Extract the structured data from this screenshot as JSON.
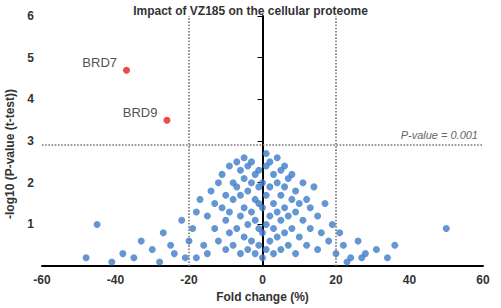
{
  "chart_data": {
    "type": "scatter",
    "title": "Impact of VZ185 on the cellular proteome",
    "x_label": "Fold change (%)",
    "y_label": "-log10 (P-value (t-test))",
    "color": "#3d7cc9",
    "marker": "circle",
    "grid": false,
    "xlim": [
      -60,
      60
    ],
    "xticks": [
      -60,
      -40,
      -20,
      0,
      20,
      40,
      60
    ],
    "ylim": [
      0,
      6
    ],
    "yticks": [
      1,
      2,
      3,
      4,
      5,
      6
    ],
    "x": [
      -48,
      -45,
      -38,
      -33,
      -30,
      -27,
      -25,
      -24,
      -22,
      -21,
      -19,
      -18,
      -17,
      -16,
      -15,
      -15,
      -14,
      -13,
      -13,
      -12,
      -12,
      -11,
      -11,
      -10,
      -10,
      -10,
      -9,
      -9,
      -9,
      -8,
      -8,
      -8,
      -7,
      -7,
      -7,
      -6,
      -6,
      -6,
      -6,
      -5,
      -5,
      -5,
      -5,
      -4,
      -4,
      -4,
      -4,
      -3,
      -3,
      -3,
      -3,
      -2,
      -2,
      -2,
      -2,
      -1,
      -1,
      -1,
      -1,
      -1,
      0,
      0,
      0,
      0,
      1,
      1,
      1,
      1,
      1,
      2,
      2,
      2,
      2,
      3,
      3,
      3,
      3,
      4,
      4,
      4,
      4,
      5,
      5,
      5,
      5,
      6,
      6,
      6,
      6,
      7,
      7,
      7,
      8,
      8,
      8,
      9,
      9,
      9,
      10,
      10,
      11,
      11,
      12,
      12,
      13,
      13,
      14,
      15,
      15,
      16,
      17,
      18,
      19,
      20,
      21,
      22,
      24,
      26,
      28,
      31,
      34,
      36,
      50,
      -35,
      -28,
      -20,
      -18,
      23,
      27,
      -41
    ],
    "values": [
      0.2,
      1.0,
      0.3,
      0.6,
      0.4,
      0.8,
      0.5,
      0.3,
      1.1,
      0.2,
      0.9,
      1.3,
      1.6,
      0.5,
      1.2,
      0.3,
      1.8,
      0.9,
      1.5,
      2.0,
      0.6,
      1.4,
      2.2,
      0.4,
      1.1,
      1.7,
      2.4,
      0.8,
      1.3,
      2.0,
      0.5,
      1.6,
      0.9,
      1.9,
      2.5,
      0.3,
      1.2,
      1.7,
      2.3,
      0.7,
      1.4,
      2.1,
      2.6,
      0.4,
      1.0,
      1.8,
      2.4,
      0.6,
      1.3,
      2.0,
      2.5,
      0.3,
      1.1,
      1.6,
      2.2,
      0.5,
      0.9,
      1.5,
      1.9,
      2.3,
      0.2,
      0.8,
      1.4,
      2.0,
      0.4,
      1.0,
      1.7,
      2.4,
      2.7,
      0.6,
      1.2,
      1.9,
      2.5,
      0.3,
      0.9,
      1.5,
      2.2,
      0.7,
      1.3,
      2.0,
      2.6,
      0.4,
      1.1,
      1.7,
      2.3,
      0.8,
      1.4,
      1.9,
      2.4,
      0.5,
      1.2,
      2.1,
      0.9,
      1.6,
      2.2,
      0.3,
      1.3,
      1.8,
      0.7,
      1.5,
      1.1,
      2.0,
      0.5,
      1.6,
      0.9,
      1.4,
      1.9,
      0.4,
      1.2,
      0.8,
      1.5,
      0.6,
      1.0,
      0.3,
      0.8,
      0.5,
      0.2,
      0.6,
      0.3,
      0.4,
      0.2,
      0.5,
      0.9,
      0.2,
      0.1,
      0.6,
      0.2,
      0.1,
      0.2,
      0.1
    ],
    "highlights": [
      {
        "label": "BRD7",
        "x": -37,
        "y": 4.7,
        "color": "#e3211c"
      },
      {
        "label": "BRD9",
        "x": -26,
        "y": 3.5,
        "color": "#e3211c"
      }
    ],
    "reference_lines": {
      "x": [
        -20,
        20
      ],
      "y": 2.9,
      "y_label": "P-value = 0.001"
    }
  }
}
